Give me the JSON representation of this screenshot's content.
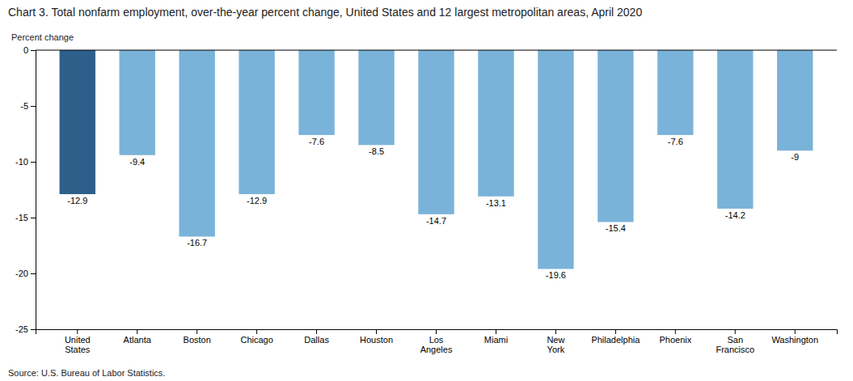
{
  "chart_data": {
    "type": "bar",
    "title": "Chart 3. Total nonfarm employment, over-the-year percent change, United States and 12 largest metropolitan areas, April 2020",
    "ylabel": "Percent change",
    "source": "Source: U.S. Bureau of Labor Statistics.",
    "categories": [
      "United\nStates",
      "Atlanta",
      "Boston",
      "Chicago",
      "Dallas",
      "Houston",
      "Los\nAngeles",
      "Miami",
      "New\nYork",
      "Philadelphia",
      "Phoenix",
      "San\nFrancisco",
      "Washington"
    ],
    "values": [
      -12.9,
      -9.4,
      -16.7,
      -12.9,
      -7.6,
      -8.5,
      -14.7,
      -13.1,
      -19.6,
      -15.4,
      -7.6,
      -14.2,
      -9.0
    ],
    "colors": [
      "#2e5f8a",
      "#7ab3d9",
      "#7ab3d9",
      "#7ab3d9",
      "#7ab3d9",
      "#7ab3d9",
      "#7ab3d9",
      "#7ab3d9",
      "#7ab3d9",
      "#7ab3d9",
      "#7ab3d9",
      "#7ab3d9",
      "#7ab3d9"
    ],
    "ylim": [
      -25,
      0
    ],
    "yticks": [
      0,
      -5,
      -10,
      -15,
      -20,
      -25
    ],
    "grid": false,
    "data_labels": true
  }
}
